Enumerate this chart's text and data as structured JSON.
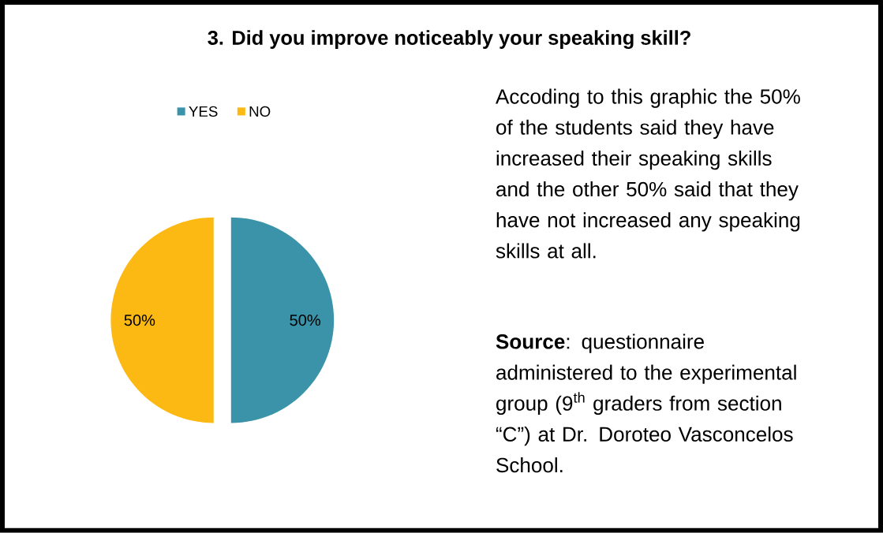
{
  "chart_data": {
    "type": "pie",
    "title": "3. Did you improve noticeably your speaking skill?",
    "categories": [
      "YES",
      "NO"
    ],
    "values": [
      50,
      50
    ],
    "colors": [
      "#3a93a8",
      "#fdb913"
    ],
    "value_labels": [
      "50%",
      "50%"
    ],
    "legend": "top",
    "annotations": [
      "Accoding to this graphic  the 50% of the students said they have increased their speaking skills and the other 50% said that they have not increased any speaking skills at all.",
      "**Source**: questionnaire administered to the experimental group (9$^{th}$ graders from section “C”) at Dr. Doroteo Vasconcelos School."
    ]
  }
}
